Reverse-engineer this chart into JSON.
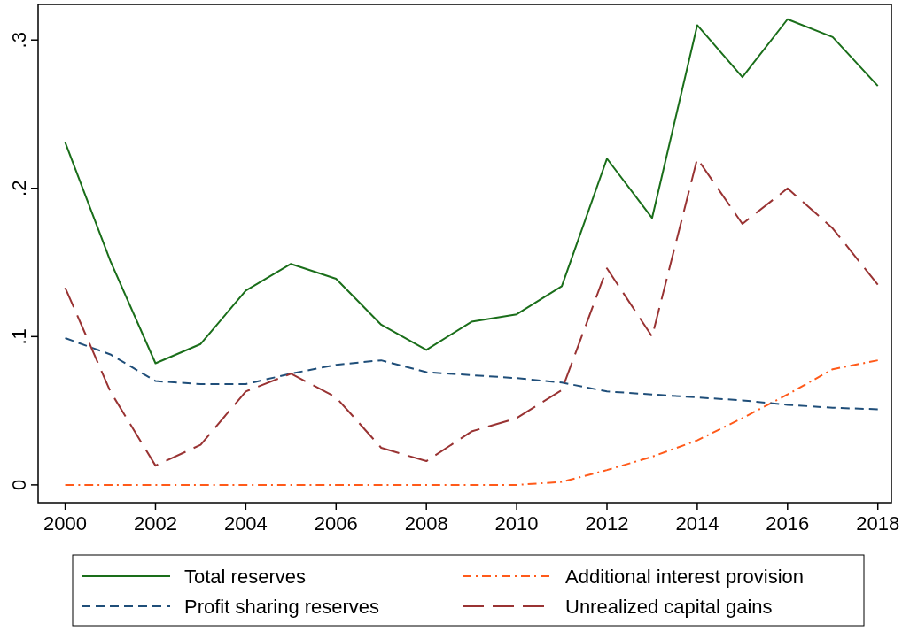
{
  "chart_data": {
    "type": "line",
    "x": [
      2000,
      2001,
      2002,
      2003,
      2004,
      2005,
      2006,
      2007,
      2008,
      2009,
      2010,
      2011,
      2012,
      2013,
      2014,
      2015,
      2016,
      2017,
      2018
    ],
    "xlim": [
      1999.4,
      2018.3
    ],
    "xticks": [
      2000,
      2002,
      2004,
      2006,
      2008,
      2010,
      2012,
      2014,
      2016,
      2018
    ],
    "ylim": [
      -0.012,
      0.324
    ],
    "yticks": [
      0,
      {
        "value": 0.1,
        "label": ".1"
      },
      {
        "value": 0.2,
        "label": ".2"
      },
      {
        "value": 0.3,
        "label": ".3"
      }
    ],
    "legend": "bottom",
    "grid": false,
    "marker": "none",
    "series": [
      {
        "name": "Total reserves",
        "color": "#1a6e1a",
        "line_style": "solid",
        "values": [
          0.231,
          0.151,
          0.082,
          0.095,
          0.131,
          0.149,
          0.139,
          0.108,
          0.091,
          0.11,
          0.115,
          0.134,
          0.22,
          0.18,
          0.31,
          0.275,
          0.314,
          0.302,
          0.269
        ]
      },
      {
        "name": "Additional interest provision",
        "color": "#ff5a1a",
        "line_style": "dashdot",
        "values": [
          0,
          0,
          0,
          0,
          0,
          0,
          0,
          0,
          0,
          0,
          0,
          0.002,
          0.01,
          0.019,
          0.03,
          0.045,
          0.061,
          0.078,
          0.084
        ]
      },
      {
        "name": "Profit sharing reserves",
        "color": "#1f4e79",
        "line_style": "dashed",
        "values": [
          0.099,
          0.088,
          0.07,
          0.068,
          0.068,
          0.075,
          0.081,
          0.084,
          0.076,
          0.074,
          0.072,
          0.069,
          0.063,
          0.061,
          0.059,
          0.057,
          0.054,
          0.052,
          0.051
        ]
      },
      {
        "name": "Unrealized capital gains",
        "color": "#993333",
        "line_style": "longdash",
        "values": [
          0.133,
          0.063,
          0.013,
          0.027,
          0.063,
          0.075,
          0.059,
          0.025,
          0.016,
          0.036,
          0.045,
          0.064,
          0.146,
          0.1,
          0.22,
          0.176,
          0.2,
          0.173,
          0.135
        ]
      }
    ]
  }
}
